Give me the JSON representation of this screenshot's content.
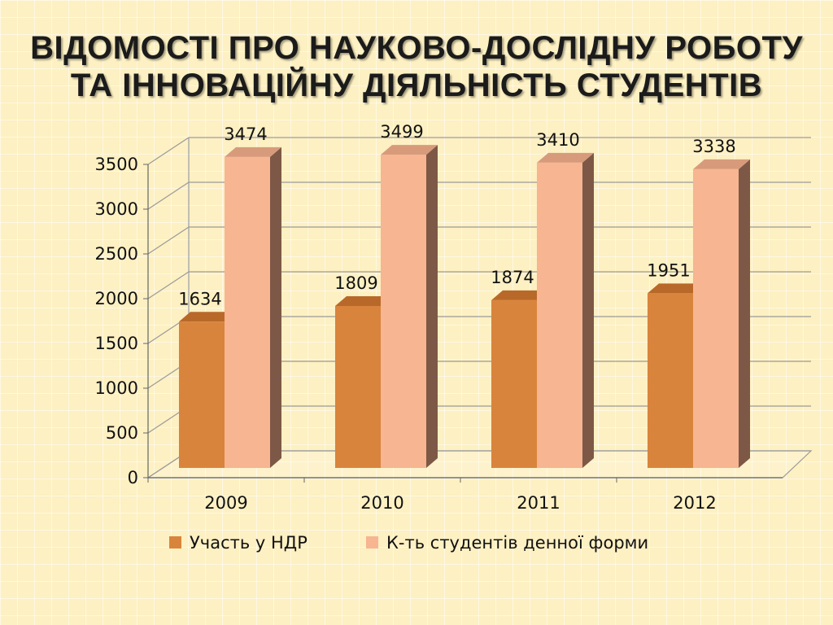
{
  "title": {
    "line1": "ВІДОМОСТІ ПРО НАУКОВО-ДОСЛІДНУ РОБОТУ",
    "line2": "ТА ІННОВАЦІЙНУ ДІЯЛЬНІСТЬ СТУДЕНТІВ"
  },
  "colors": {
    "series1_front": "#d9843c",
    "series1_top": "#b8692a",
    "series1_side": "#a25a25",
    "series2_front": "#f7b591",
    "series2_top": "#d79b7c",
    "series2_side": "#7e5846",
    "grid": "#9a9a9a"
  },
  "chart_data": {
    "type": "bar",
    "categories": [
      "2009",
      "2010",
      "2011",
      "2012"
    ],
    "series": [
      {
        "name": "Участь у НДР",
        "values": [
          1634,
          1809,
          1874,
          1951
        ]
      },
      {
        "name": "К-ть студентів денної форми",
        "values": [
          3474,
          3499,
          3410,
          3338
        ]
      }
    ],
    "ylim": [
      0,
      3500
    ],
    "yticks": [
      "0",
      "500",
      "1000",
      "1500",
      "2000",
      "2500",
      "3000",
      "3500"
    ],
    "grid": true,
    "legend": "bottom",
    "style": "3d-clustered-column"
  }
}
